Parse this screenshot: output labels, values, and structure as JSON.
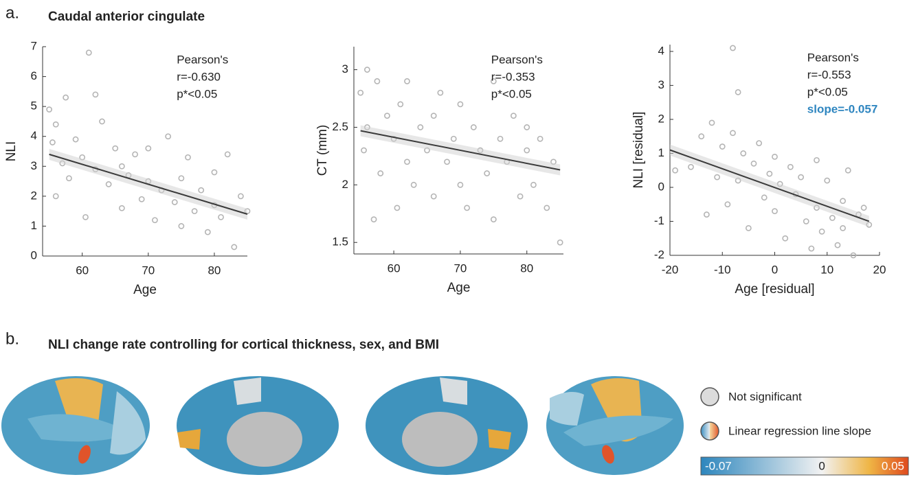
{
  "panel_a": {
    "label": "a.",
    "title": "Caudal anterior cingulate"
  },
  "chart_data": [
    {
      "type": "scatter",
      "xlabel": "Age",
      "ylabel": "NLI",
      "x": [
        55,
        55.5,
        56,
        56,
        57,
        57.5,
        58,
        59,
        60,
        60.5,
        61,
        62,
        62,
        63,
        64,
        65,
        66,
        66,
        67,
        68,
        69,
        70,
        70,
        71,
        72,
        73,
        74,
        75,
        75,
        76,
        77,
        78,
        79,
        80,
        80,
        81,
        82,
        83,
        84,
        85
      ],
      "values": [
        4.9,
        3.8,
        2.0,
        4.4,
        3.1,
        5.3,
        2.6,
        3.9,
        3.3,
        1.3,
        6.8,
        5.4,
        2.9,
        4.5,
        2.4,
        3.6,
        1.6,
        3.0,
        2.7,
        3.4,
        1.9,
        2.5,
        3.6,
        1.2,
        2.2,
        4.0,
        1.8,
        2.6,
        1.0,
        3.3,
        1.5,
        2.2,
        0.8,
        2.8,
        1.7,
        1.3,
        3.4,
        0.3,
        2.0,
        1.5
      ],
      "color": "#b4b4b4",
      "fit": {
        "x": [
          55,
          85
        ],
        "values": [
          3.4,
          1.4
        ],
        "color": "#3a3a3a"
      },
      "annotations": [
        "Pearson's",
        "r=-0.630",
        "p*<0.05"
      ],
      "xlim": [
        54,
        85
      ],
      "xticks": [
        60,
        70,
        80
      ],
      "ylim": [
        0,
        7
      ],
      "yticks": [
        0,
        1,
        2,
        3,
        4,
        5,
        6,
        7
      ]
    },
    {
      "type": "scatter",
      "xlabel": "Age",
      "ylabel": "CT (mm)",
      "x": [
        55,
        55.5,
        56,
        56,
        57,
        57.5,
        58,
        59,
        60,
        60.5,
        61,
        62,
        62,
        63,
        64,
        65,
        66,
        66,
        67,
        68,
        69,
        70,
        70,
        71,
        72,
        73,
        74,
        75,
        75,
        76,
        77,
        78,
        79,
        80,
        80,
        81,
        82,
        83,
        84,
        85
      ],
      "values": [
        2.8,
        2.3,
        3.0,
        2.5,
        1.7,
        2.9,
        2.1,
        2.6,
        2.4,
        1.8,
        2.7,
        2.2,
        2.9,
        2.0,
        2.5,
        2.3,
        1.9,
        2.6,
        2.8,
        2.2,
        2.4,
        2.0,
        2.7,
        1.8,
        2.5,
        2.3,
        2.1,
        2.9,
        1.7,
        2.4,
        2.2,
        2.6,
        1.9,
        2.3,
        2.5,
        2.0,
        2.4,
        1.8,
        2.2,
        1.5
      ],
      "color": "#b4b4b4",
      "fit": {
        "x": [
          55,
          85
        ],
        "values": [
          2.47,
          2.13
        ],
        "color": "#3a3a3a"
      },
      "annotations": [
        "Pearson's",
        "r=-0.353",
        "p*<0.05"
      ],
      "xlim": [
        54,
        85.5
      ],
      "xticks": [
        60,
        70,
        80
      ],
      "ylim": [
        1.4,
        3.2
      ],
      "yticks": [
        1.5,
        2,
        2.5,
        3
      ]
    },
    {
      "type": "scatter",
      "xlabel": "Age [residual]",
      "ylabel": "NLI [residual]",
      "x": [
        -19,
        -16,
        -14,
        -13,
        -12,
        -11,
        -10,
        -9,
        -8,
        -8,
        -7,
        -7,
        -6,
        -5,
        -4,
        -3,
        -2,
        -1,
        0,
        0,
        1,
        2,
        3,
        4,
        5,
        6,
        7,
        8,
        8,
        9,
        10,
        11,
        12,
        13,
        13,
        14,
        15,
        16,
        17,
        18
      ],
      "values": [
        0.5,
        0.6,
        1.5,
        -0.8,
        1.9,
        0.3,
        1.2,
        -0.5,
        4.1,
        1.6,
        2.8,
        0.2,
        1.0,
        -1.2,
        0.7,
        1.3,
        -0.3,
        0.4,
        0.9,
        -0.7,
        0.1,
        -1.5,
        0.6,
        -0.2,
        0.3,
        -1.0,
        -1.8,
        0.8,
        -0.6,
        -1.3,
        0.2,
        -0.9,
        -1.7,
        -0.4,
        -1.2,
        0.5,
        -2.0,
        -0.8,
        -0.6,
        -1.1
      ],
      "color": "#b4b4b4",
      "fit": {
        "x": [
          -20,
          18
        ],
        "values": [
          1.1,
          -1.0
        ],
        "color": "#3a3a3a"
      },
      "annotations": [
        "Pearson's",
        "r=-0.553",
        "p*<0.05"
      ],
      "slope_label": "slope=-0.057",
      "slope_color": "#2f86c0",
      "xlim": [
        -20,
        20
      ],
      "xticks": [
        -20,
        -10,
        0,
        10,
        20
      ],
      "ylim": [
        -2,
        4.2
      ],
      "yticks": [
        -2,
        -1,
        0,
        1,
        2,
        3,
        4
      ]
    }
  ],
  "panel_b": {
    "label": "b.",
    "title": "NLI change rate controlling for cortical thickness, sex, and BMI",
    "legend": [
      "Not significant",
      "Linear regression line slope"
    ],
    "colorbar": {
      "lim": [
        -0.07,
        0.05
      ],
      "ticks": [
        -0.07,
        0,
        0.05
      ]
    }
  }
}
